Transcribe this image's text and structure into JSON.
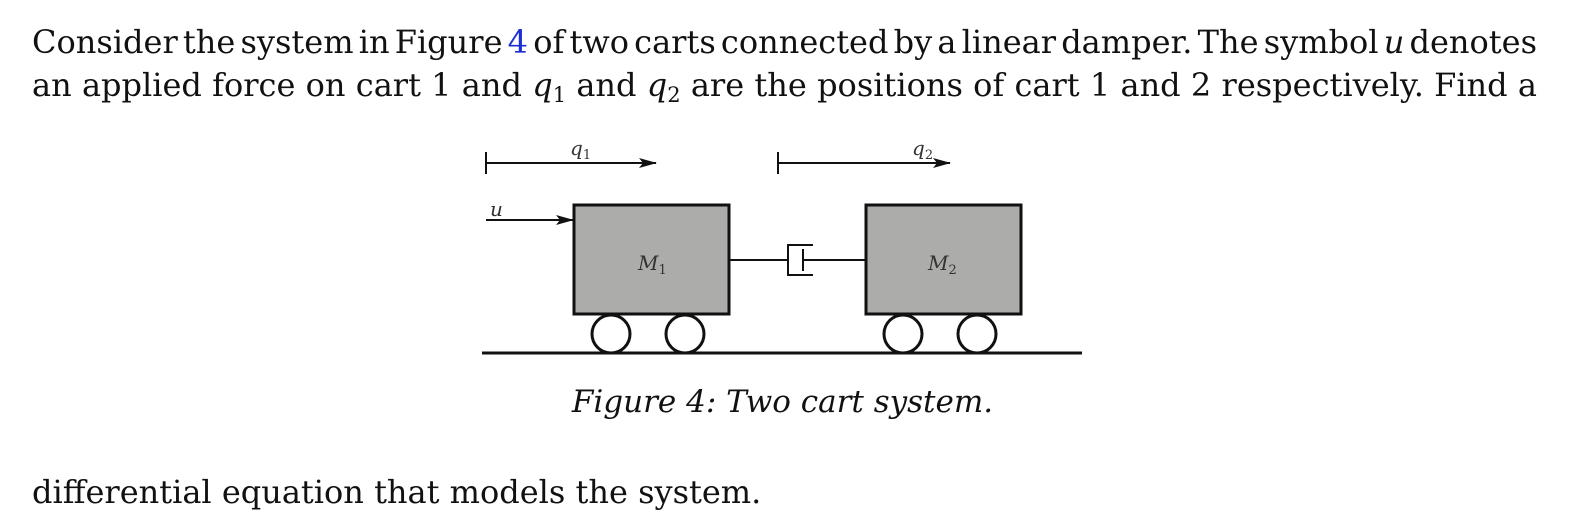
{
  "text": {
    "line1": [
      "Consider",
      "the",
      "system",
      "in",
      "Figure",
      "4",
      "of",
      "two",
      "carts",
      "connected",
      "by",
      "a",
      "linear",
      "damper.",
      "The",
      "symbol",
      "u",
      "denotes"
    ],
    "line2": {
      "w1": "an",
      "w2": "applied",
      "w3": "force",
      "w4": "on",
      "w5": "cart",
      "w6": "1",
      "w7": "and",
      "q1_base": "q",
      "q1_sub": "1",
      "w8": "and",
      "q2_base": "q",
      "q2_sub": "2",
      "w9": "are",
      "w10": "the",
      "w11": "positions",
      "w12": "of",
      "w13": "cart",
      "w14": "1",
      "w15": "and",
      "w16": "2",
      "w17": "respectively.",
      "w18": "Find",
      "w19": "a"
    },
    "line3": "differential equation that models the system."
  },
  "figure": {
    "label_q1_base": "q",
    "label_q1_sub": "1",
    "label_q2_base": "q",
    "label_q2_sub": "2",
    "label_u": "u",
    "mass1_base": "M",
    "mass1_sub": "1",
    "mass2_base": "M",
    "mass2_sub": "2",
    "cart_fill": "#acacaa",
    "caption": "Figure 4: Two cart system."
  },
  "colors": {
    "reference_link": "#1a2fd6",
    "text": "#111111"
  }
}
